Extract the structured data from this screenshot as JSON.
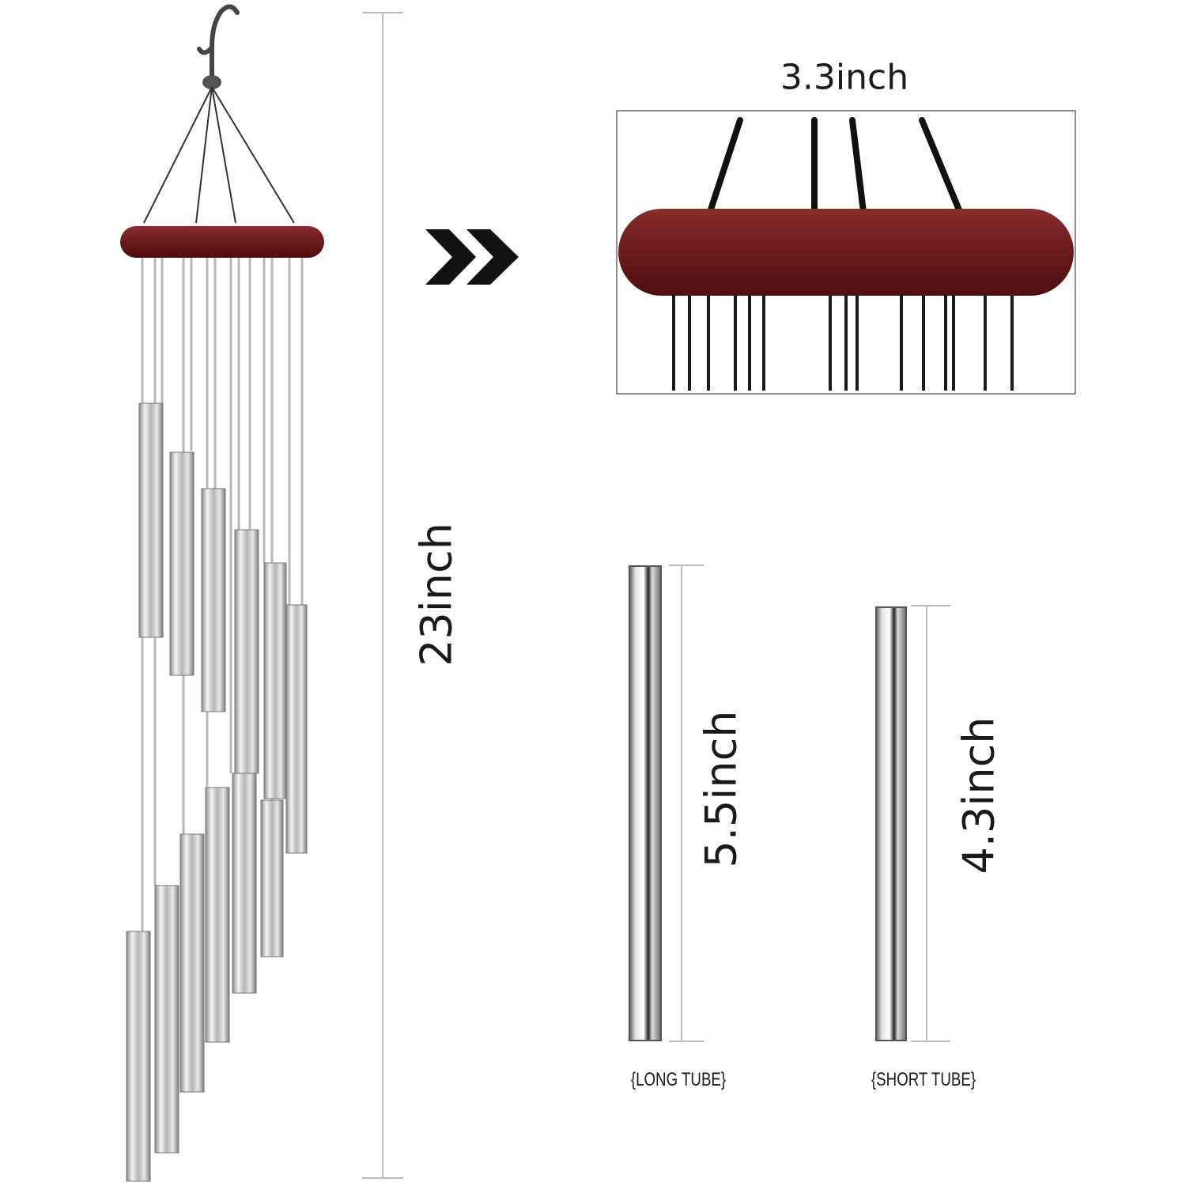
{
  "dimensions": {
    "overall_height": "23inch",
    "ring_width": "3.3inch",
    "long_tube_length": "5.5inch",
    "short_tube_length": "4.3inch"
  },
  "captions": {
    "long_tube": "{LONG TUBE}",
    "short_tube": "{SHORT TUBE}"
  },
  "colors": {
    "wood": "#6b1a1a",
    "tube": "#c9c9c9",
    "dimension_line": "#bbbbbb",
    "arrow": "#111111"
  },
  "icons": [
    "hook-icon",
    "double-chevron-right-icon"
  ]
}
